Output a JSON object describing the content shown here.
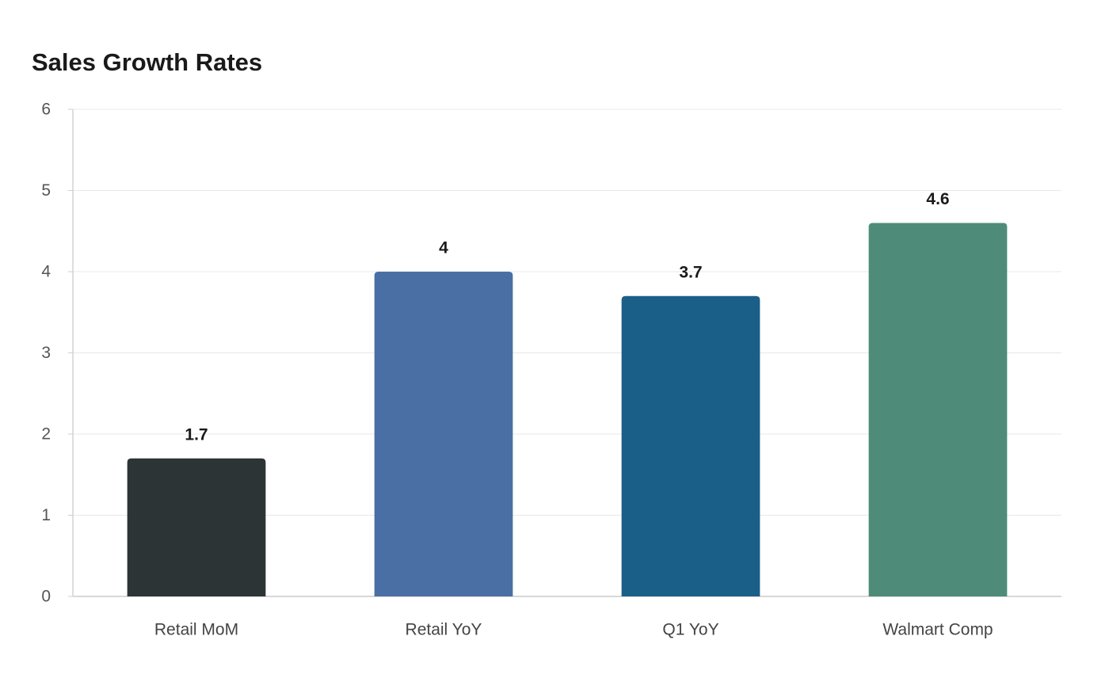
{
  "chart_data": {
    "type": "bar",
    "title": "Sales Growth Rates",
    "xlabel": "",
    "ylabel": "",
    "categories": [
      "Retail MoM",
      "Retail YoY",
      "Q1 YoY",
      "Walmart Comp"
    ],
    "values": [
      1.7,
      4,
      3.7,
      4.6
    ],
    "value_labels": [
      "1.7",
      "4",
      "3.7",
      "4.6"
    ],
    "colors": [
      "#2d3436",
      "#4a6fa5",
      "#1a5f87",
      "#4e8c79"
    ],
    "ylim": [
      0,
      6
    ],
    "yticks": [
      0,
      1,
      2,
      3,
      4,
      5,
      6
    ],
    "grid": true,
    "legend": "none"
  }
}
